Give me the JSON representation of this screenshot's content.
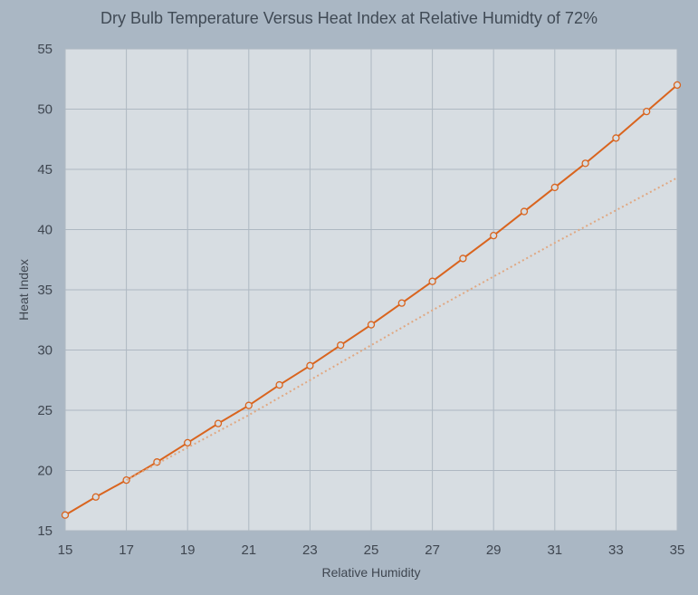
{
  "chart_data": {
    "type": "line",
    "title": "Dry Bulb Temperature Versus Heat Index at Relative Humidty of 72%",
    "xlabel": "Relative Humidity",
    "ylabel": "Heat Index",
    "xlim": [
      15,
      35
    ],
    "ylim": [
      15,
      55
    ],
    "xticks": [
      15,
      17,
      19,
      21,
      23,
      25,
      27,
      29,
      31,
      33,
      35
    ],
    "yticks": [
      15,
      20,
      25,
      30,
      35,
      40,
      45,
      50,
      55
    ],
    "grid": true,
    "colors": {
      "series": "#d9641e",
      "plot_bg": "#d7dde2",
      "page_bg": "#aab7c4",
      "grid": "#aeb8c2",
      "reference": "#e0a882"
    },
    "series": [
      {
        "x": [
          15,
          16,
          17,
          18,
          19,
          20,
          21,
          22,
          23,
          24,
          25,
          26,
          27,
          28,
          29,
          30,
          31,
          32,
          33,
          34,
          35
        ],
        "y": [
          16.3,
          17.8,
          19.2,
          20.7,
          22.3,
          23.9,
          25.4,
          27.1,
          28.7,
          30.4,
          32.1,
          33.9,
          35.7,
          37.6,
          39.5,
          41.5,
          43.5,
          45.5,
          47.6,
          49.8,
          52.0
        ]
      },
      {
        "style": "dotted",
        "x": [
          17,
          19,
          21,
          23,
          25,
          27,
          29,
          31,
          33,
          35
        ],
        "y": [
          19.2,
          21.9,
          24.6,
          27.5,
          30.4,
          33.3,
          36.1,
          38.9,
          41.6,
          44.3
        ]
      }
    ]
  }
}
